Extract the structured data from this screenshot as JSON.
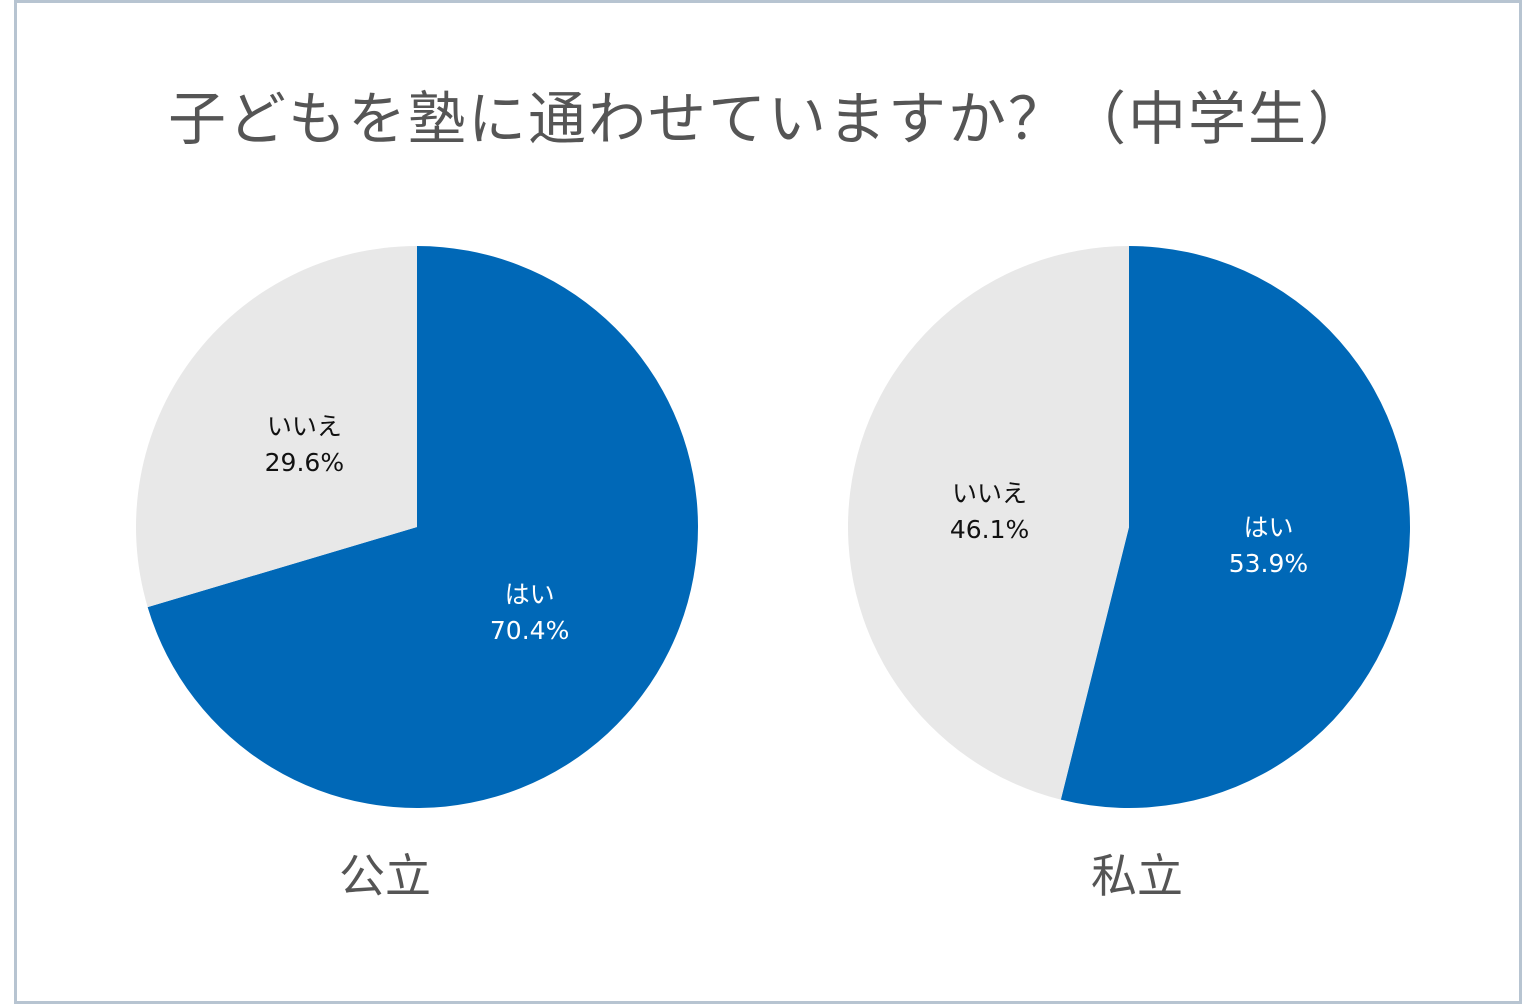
{
  "chart_data": {
    "type": "pie",
    "title": "子どもを塾に通わせていますか？（中学生）",
    "colors": {
      "はい": "#0068b7",
      "いいえ": "#e8e8e8"
    },
    "charts": [
      {
        "label": "公立",
        "slices": [
          {
            "name": "はい",
            "value": 70.4,
            "text": "70.4%"
          },
          {
            "name": "いいえ",
            "value": 29.6,
            "text": "29.6%"
          }
        ]
      },
      {
        "label": "私立",
        "slices": [
          {
            "name": "はい",
            "value": 53.9,
            "text": "53.9%"
          },
          {
            "name": "いいえ",
            "value": 46.1,
            "text": "46.1%"
          }
        ]
      }
    ]
  }
}
